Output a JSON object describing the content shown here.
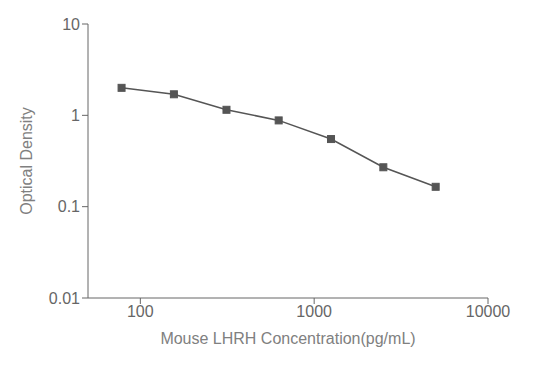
{
  "chart_data": {
    "type": "line",
    "x": [
      78,
      156,
      313,
      625,
      1250,
      2500,
      5000
    ],
    "values": [
      2.0,
      1.7,
      1.15,
      0.88,
      0.55,
      0.27,
      0.165
    ],
    "xlabel": "Mouse LHRH Concentration(pg/mL)",
    "ylabel": "Optical Density",
    "xlim": [
      50,
      10000
    ],
    "ylim": [
      0.01,
      10
    ],
    "xticks": [
      100,
      1000,
      10000
    ],
    "yticks": [
      0.01,
      0.1,
      1,
      10
    ],
    "log": true,
    "color": "#555555",
    "marker": "square",
    "grid": false
  }
}
